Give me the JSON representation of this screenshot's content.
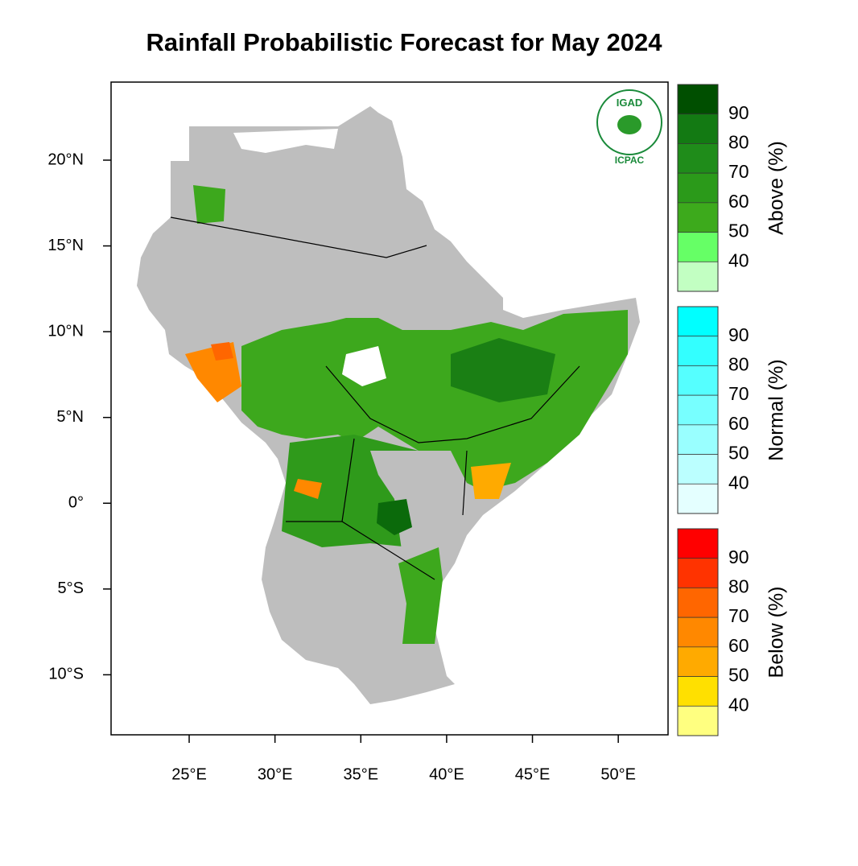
{
  "map": {
    "title": "Rainfall Probabilistic Forecast for May 2024",
    "xlim": [
      20.45,
      52.9
    ],
    "ylim": [
      -13.5,
      24.55
    ],
    "xticks": [
      {
        "value": 25,
        "label": "25°E"
      },
      {
        "value": 30,
        "label": "30°E"
      },
      {
        "value": 35,
        "label": "35°E"
      },
      {
        "value": 40,
        "label": "40°E"
      },
      {
        "value": 45,
        "label": "45°E"
      },
      {
        "value": 50,
        "label": "50°E"
      }
    ],
    "yticks": [
      {
        "value": 20,
        "label": "20°N"
      },
      {
        "value": 15,
        "label": "15°N"
      },
      {
        "value": 10,
        "label": "10°N"
      },
      {
        "value": 5,
        "label": "5°N"
      },
      {
        "value": 0,
        "label": "0°"
      },
      {
        "value": -5,
        "label": "5°S"
      },
      {
        "value": -10,
        "label": "10°S"
      }
    ],
    "legend": [
      {
        "label": "Above (%)",
        "ticks": [
          90,
          80,
          70,
          60,
          50,
          40
        ],
        "colors": [
          "#004f00",
          "#137a13",
          "#1f8c1a",
          "#2b9a1a",
          "#3daa1c",
          "#66ff66",
          "#c2ffc2"
        ]
      },
      {
        "label": "Normal (%)",
        "ticks": [
          90,
          80,
          70,
          60,
          50,
          40
        ],
        "colors": [
          "#00ffff",
          "#33ffff",
          "#55ffff",
          "#77ffff",
          "#99ffff",
          "#bbffff",
          "#e4ffff"
        ]
      },
      {
        "label": "Below (%)",
        "ticks": [
          90,
          80,
          70,
          60,
          50,
          40
        ],
        "colors": [
          "#ff0000",
          "#ff3300",
          "#ff6600",
          "#ff8800",
          "#ffaa00",
          "#ffe000",
          "#ffff80"
        ]
      }
    ],
    "logo": {
      "top": "IGAD",
      "bottom": "ICPAC"
    }
  }
}
